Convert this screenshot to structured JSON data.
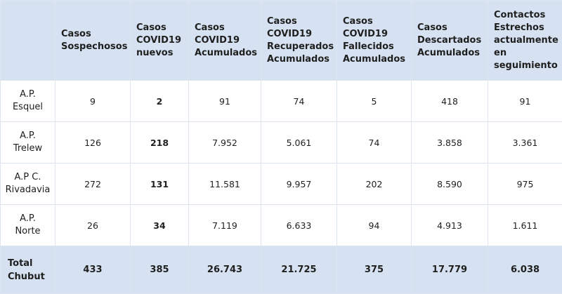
{
  "headers": [
    "",
    "Casos\nSospechosos",
    "Casos\nCOVID19\nnuevos",
    "Casos\nCOVID19\nAcumulados",
    "Casos\nCOVID19\nRecuperados\nAcumulados",
    "Casos\nCOVID19\nFallecidos\nAcumulados",
    "Casos\nDescartados\nAcumulados",
    "Contactos\nEstrechos\nactualmente\nen\nseguimiento"
  ],
  "rows": [
    {
      "label": "A.P.\nEsquel",
      "values": [
        "9",
        "2",
        "91",
        "74",
        "5",
        "418",
        "91"
      ]
    },
    {
      "label": "A.P.\nTrelew",
      "values": [
        "126",
        "218",
        "7.952",
        "5.061",
        "74",
        "3.858",
        "3.361"
      ]
    },
    {
      "label": "A.P C.\nRivadavia",
      "values": [
        "272",
        "131",
        "11.581",
        "9.957",
        "202",
        "8.590",
        "975"
      ]
    },
    {
      "label": "A.P.\nNorte",
      "values": [
        "26",
        "34",
        "7.119",
        "6.633",
        "94",
        "4.913",
        "1.611"
      ]
    }
  ],
  "total": {
    "label": "Total\nChubut",
    "values": [
      "433",
      "385",
      "26.743",
      "21.725",
      "375",
      "17.779",
      "6.038"
    ]
  }
}
